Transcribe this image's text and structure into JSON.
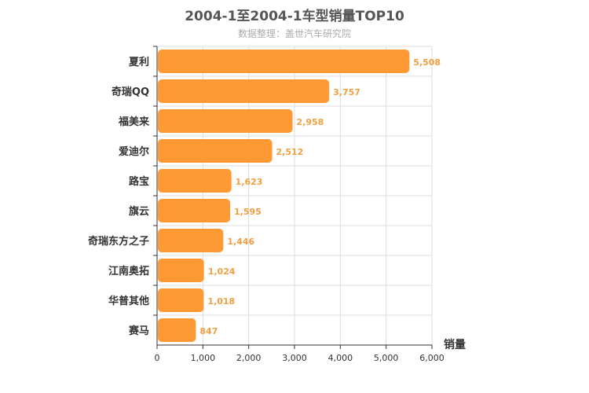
{
  "chart_data": {
    "type": "bar",
    "orientation": "horizontal",
    "title": "2004-1至2004-1车型销量TOP10",
    "subtitle": "数据整理：盖世汽车研究院",
    "xlabel": "销量",
    "categories": [
      "夏利",
      "奇瑞QQ",
      "福美来",
      "爱迪尔",
      "路宝",
      "旗云",
      "奇瑞东方之子",
      "江南奥拓",
      "华普其他",
      "赛马"
    ],
    "values": [
      5508,
      3757,
      2958,
      2512,
      1623,
      1595,
      1446,
      1024,
      1018,
      847
    ],
    "value_labels": [
      "5,508",
      "3,757",
      "2,958",
      "2,512",
      "1,623",
      "1,595",
      "1,446",
      "1,024",
      "1,018",
      "847"
    ],
    "xlim": [
      0,
      6000
    ],
    "xticks": [
      0,
      1000,
      2000,
      3000,
      4000,
      5000,
      6000
    ],
    "xtick_labels": [
      "0",
      "1,000",
      "2,000",
      "3,000",
      "4,000",
      "5,000",
      "6,000"
    ],
    "grid": true,
    "legend": "none",
    "colors": {
      "bar": "#ff9933",
      "value_label": "#f0a040",
      "grid": "#dddddd",
      "axis": "#333333"
    }
  }
}
